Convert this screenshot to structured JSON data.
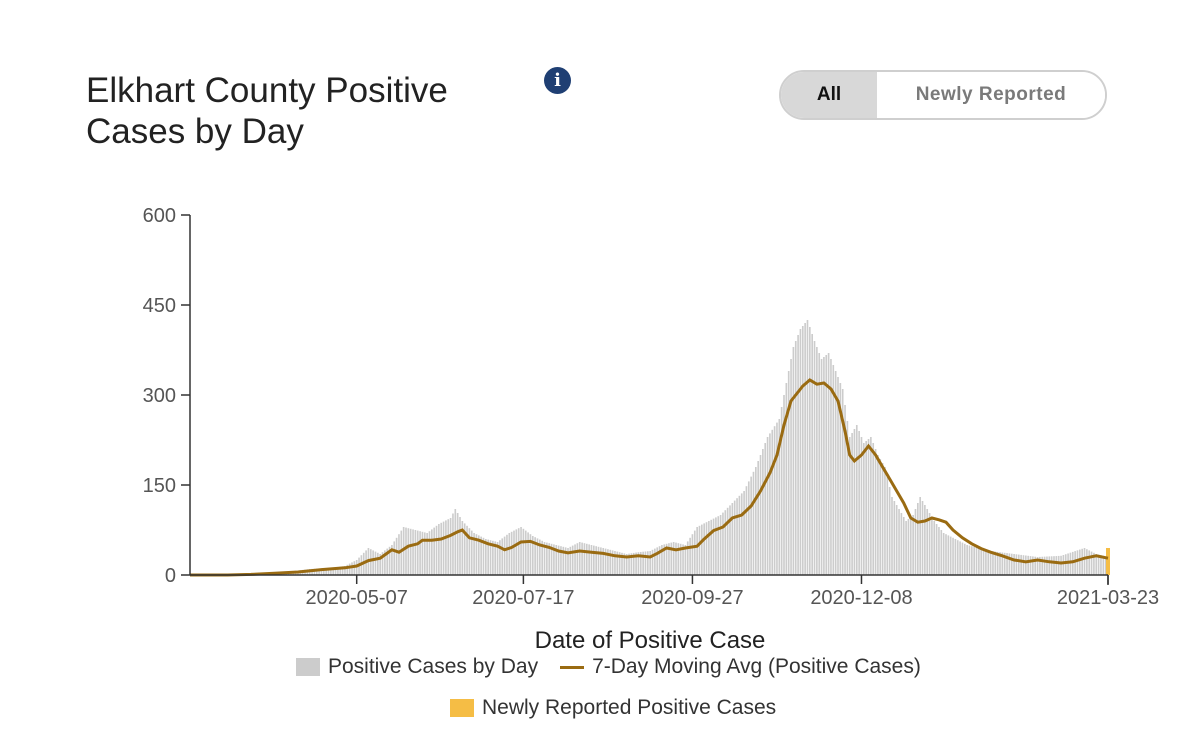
{
  "header": {
    "title": "Elkhart County Positive Cases by Day",
    "info_icon": "info-circle-icon",
    "toggle": {
      "all_label": "All",
      "new_label": "Newly Reported",
      "selected": "All"
    }
  },
  "colors": {
    "bars": "#cccccc",
    "avg_line": "#9a6b12",
    "new_reported": "#f5bd45",
    "info": "#1f3f73"
  },
  "chart_data": {
    "type": "bar",
    "xlabel": "Date of Positive Case",
    "ylabel": "",
    "ylim": [
      0,
      600
    ],
    "y_ticks": [
      "0",
      "150",
      "300",
      "450",
      "600"
    ],
    "x_tick_labels": [
      "2020-05-07",
      "2020-07-17",
      "2020-09-27",
      "2020-12-08",
      "2021-03-23"
    ],
    "x_tick_days": [
      0,
      71,
      143,
      215,
      320
    ],
    "start_day": -71,
    "end_day": 320,
    "legend": [
      "Positive Cases by Day",
      "7-Day Moving Avg (Positive Cases)",
      "Newly Reported Positive Cases"
    ],
    "series": [
      {
        "name": "Positive Cases by Day",
        "kind": "bar",
        "color": "#cccccc",
        "points": [
          [
            -71,
            0
          ],
          [
            -60,
            0
          ],
          [
            -50,
            1
          ],
          [
            -40,
            3
          ],
          [
            -30,
            5
          ],
          [
            -20,
            10
          ],
          [
            -10,
            12
          ],
          [
            -5,
            15
          ],
          [
            0,
            25
          ],
          [
            5,
            45
          ],
          [
            10,
            35
          ],
          [
            15,
            50
          ],
          [
            20,
            80
          ],
          [
            25,
            75
          ],
          [
            30,
            70
          ],
          [
            35,
            85
          ],
          [
            40,
            95
          ],
          [
            42,
            110
          ],
          [
            45,
            90
          ],
          [
            50,
            70
          ],
          [
            55,
            60
          ],
          [
            60,
            55
          ],
          [
            65,
            70
          ],
          [
            70,
            80
          ],
          [
            75,
            65
          ],
          [
            80,
            55
          ],
          [
            85,
            50
          ],
          [
            90,
            45
          ],
          [
            95,
            55
          ],
          [
            100,
            50
          ],
          [
            105,
            45
          ],
          [
            110,
            40
          ],
          [
            115,
            35
          ],
          [
            120,
            38
          ],
          [
            125,
            40
          ],
          [
            130,
            50
          ],
          [
            135,
            55
          ],
          [
            140,
            50
          ],
          [
            145,
            80
          ],
          [
            150,
            90
          ],
          [
            155,
            100
          ],
          [
            160,
            120
          ],
          [
            165,
            140
          ],
          [
            170,
            180
          ],
          [
            175,
            230
          ],
          [
            180,
            260
          ],
          [
            183,
            320
          ],
          [
            186,
            380
          ],
          [
            189,
            410
          ],
          [
            192,
            425
          ],
          [
            195,
            390
          ],
          [
            198,
            360
          ],
          [
            201,
            370
          ],
          [
            204,
            340
          ],
          [
            207,
            310
          ],
          [
            210,
            230
          ],
          [
            213,
            250
          ],
          [
            216,
            220
          ],
          [
            219,
            230
          ],
          [
            222,
            200
          ],
          [
            225,
            180
          ],
          [
            228,
            130
          ],
          [
            231,
            110
          ],
          [
            234,
            90
          ],
          [
            237,
            100
          ],
          [
            240,
            130
          ],
          [
            243,
            110
          ],
          [
            246,
            90
          ],
          [
            250,
            70
          ],
          [
            255,
            60
          ],
          [
            260,
            50
          ],
          [
            265,
            45
          ],
          [
            270,
            40
          ],
          [
            280,
            35
          ],
          [
            290,
            30
          ],
          [
            300,
            32
          ],
          [
            310,
            45
          ],
          [
            315,
            35
          ],
          [
            320,
            30
          ]
        ]
      },
      {
        "name": "7-Day Moving Avg (Positive Cases)",
        "kind": "line",
        "color": "#9a6b12",
        "points": [
          [
            -71,
            0
          ],
          [
            -55,
            0
          ],
          [
            -45,
            1
          ],
          [
            -35,
            3
          ],
          [
            -25,
            5
          ],
          [
            -15,
            9
          ],
          [
            -5,
            12
          ],
          [
            0,
            15
          ],
          [
            5,
            24
          ],
          [
            10,
            28
          ],
          [
            15,
            42
          ],
          [
            18,
            38
          ],
          [
            22,
            48
          ],
          [
            26,
            52
          ],
          [
            28,
            58
          ],
          [
            32,
            58
          ],
          [
            36,
            60
          ],
          [
            40,
            66
          ],
          [
            43,
            72
          ],
          [
            45,
            75
          ],
          [
            48,
            62
          ],
          [
            52,
            58
          ],
          [
            56,
            52
          ],
          [
            60,
            48
          ],
          [
            63,
            42
          ],
          [
            66,
            46
          ],
          [
            70,
            55
          ],
          [
            74,
            56
          ],
          [
            78,
            50
          ],
          [
            82,
            46
          ],
          [
            86,
            40
          ],
          [
            90,
            37
          ],
          [
            95,
            40
          ],
          [
            100,
            38
          ],
          [
            105,
            36
          ],
          [
            110,
            32
          ],
          [
            115,
            30
          ],
          [
            120,
            32
          ],
          [
            125,
            30
          ],
          [
            128,
            36
          ],
          [
            132,
            45
          ],
          [
            136,
            42
          ],
          [
            140,
            45
          ],
          [
            145,
            48
          ],
          [
            148,
            60
          ],
          [
            152,
            74
          ],
          [
            156,
            80
          ],
          [
            160,
            95
          ],
          [
            164,
            100
          ],
          [
            168,
            115
          ],
          [
            172,
            140
          ],
          [
            176,
            170
          ],
          [
            179,
            200
          ],
          [
            182,
            250
          ],
          [
            185,
            290
          ],
          [
            188,
            305
          ],
          [
            190,
            315
          ],
          [
            193,
            325
          ],
          [
            196,
            318
          ],
          [
            199,
            320
          ],
          [
            202,
            310
          ],
          [
            205,
            290
          ],
          [
            208,
            240
          ],
          [
            210,
            200
          ],
          [
            212,
            190
          ],
          [
            215,
            200
          ],
          [
            218,
            215
          ],
          [
            221,
            200
          ],
          [
            224,
            180
          ],
          [
            227,
            160
          ],
          [
            230,
            140
          ],
          [
            233,
            120
          ],
          [
            236,
            95
          ],
          [
            239,
            88
          ],
          [
            242,
            90
          ],
          [
            245,
            95
          ],
          [
            248,
            92
          ],
          [
            251,
            88
          ],
          [
            254,
            75
          ],
          [
            258,
            62
          ],
          [
            262,
            52
          ],
          [
            266,
            44
          ],
          [
            270,
            38
          ],
          [
            275,
            32
          ],
          [
            280,
            25
          ],
          [
            285,
            22
          ],
          [
            290,
            25
          ],
          [
            295,
            22
          ],
          [
            300,
            20
          ],
          [
            305,
            22
          ],
          [
            310,
            28
          ],
          [
            315,
            32
          ],
          [
            320,
            28
          ]
        ]
      },
      {
        "name": "Newly Reported Positive Cases",
        "kind": "bar",
        "color": "#f5bd45",
        "points": [
          [
            320,
            45
          ]
        ]
      }
    ]
  },
  "legend": {
    "bars_label": "Positive Cases by Day",
    "avg_label": "7-Day Moving Avg (Positive Cases)",
    "new_label": "Newly Reported Positive Cases"
  }
}
